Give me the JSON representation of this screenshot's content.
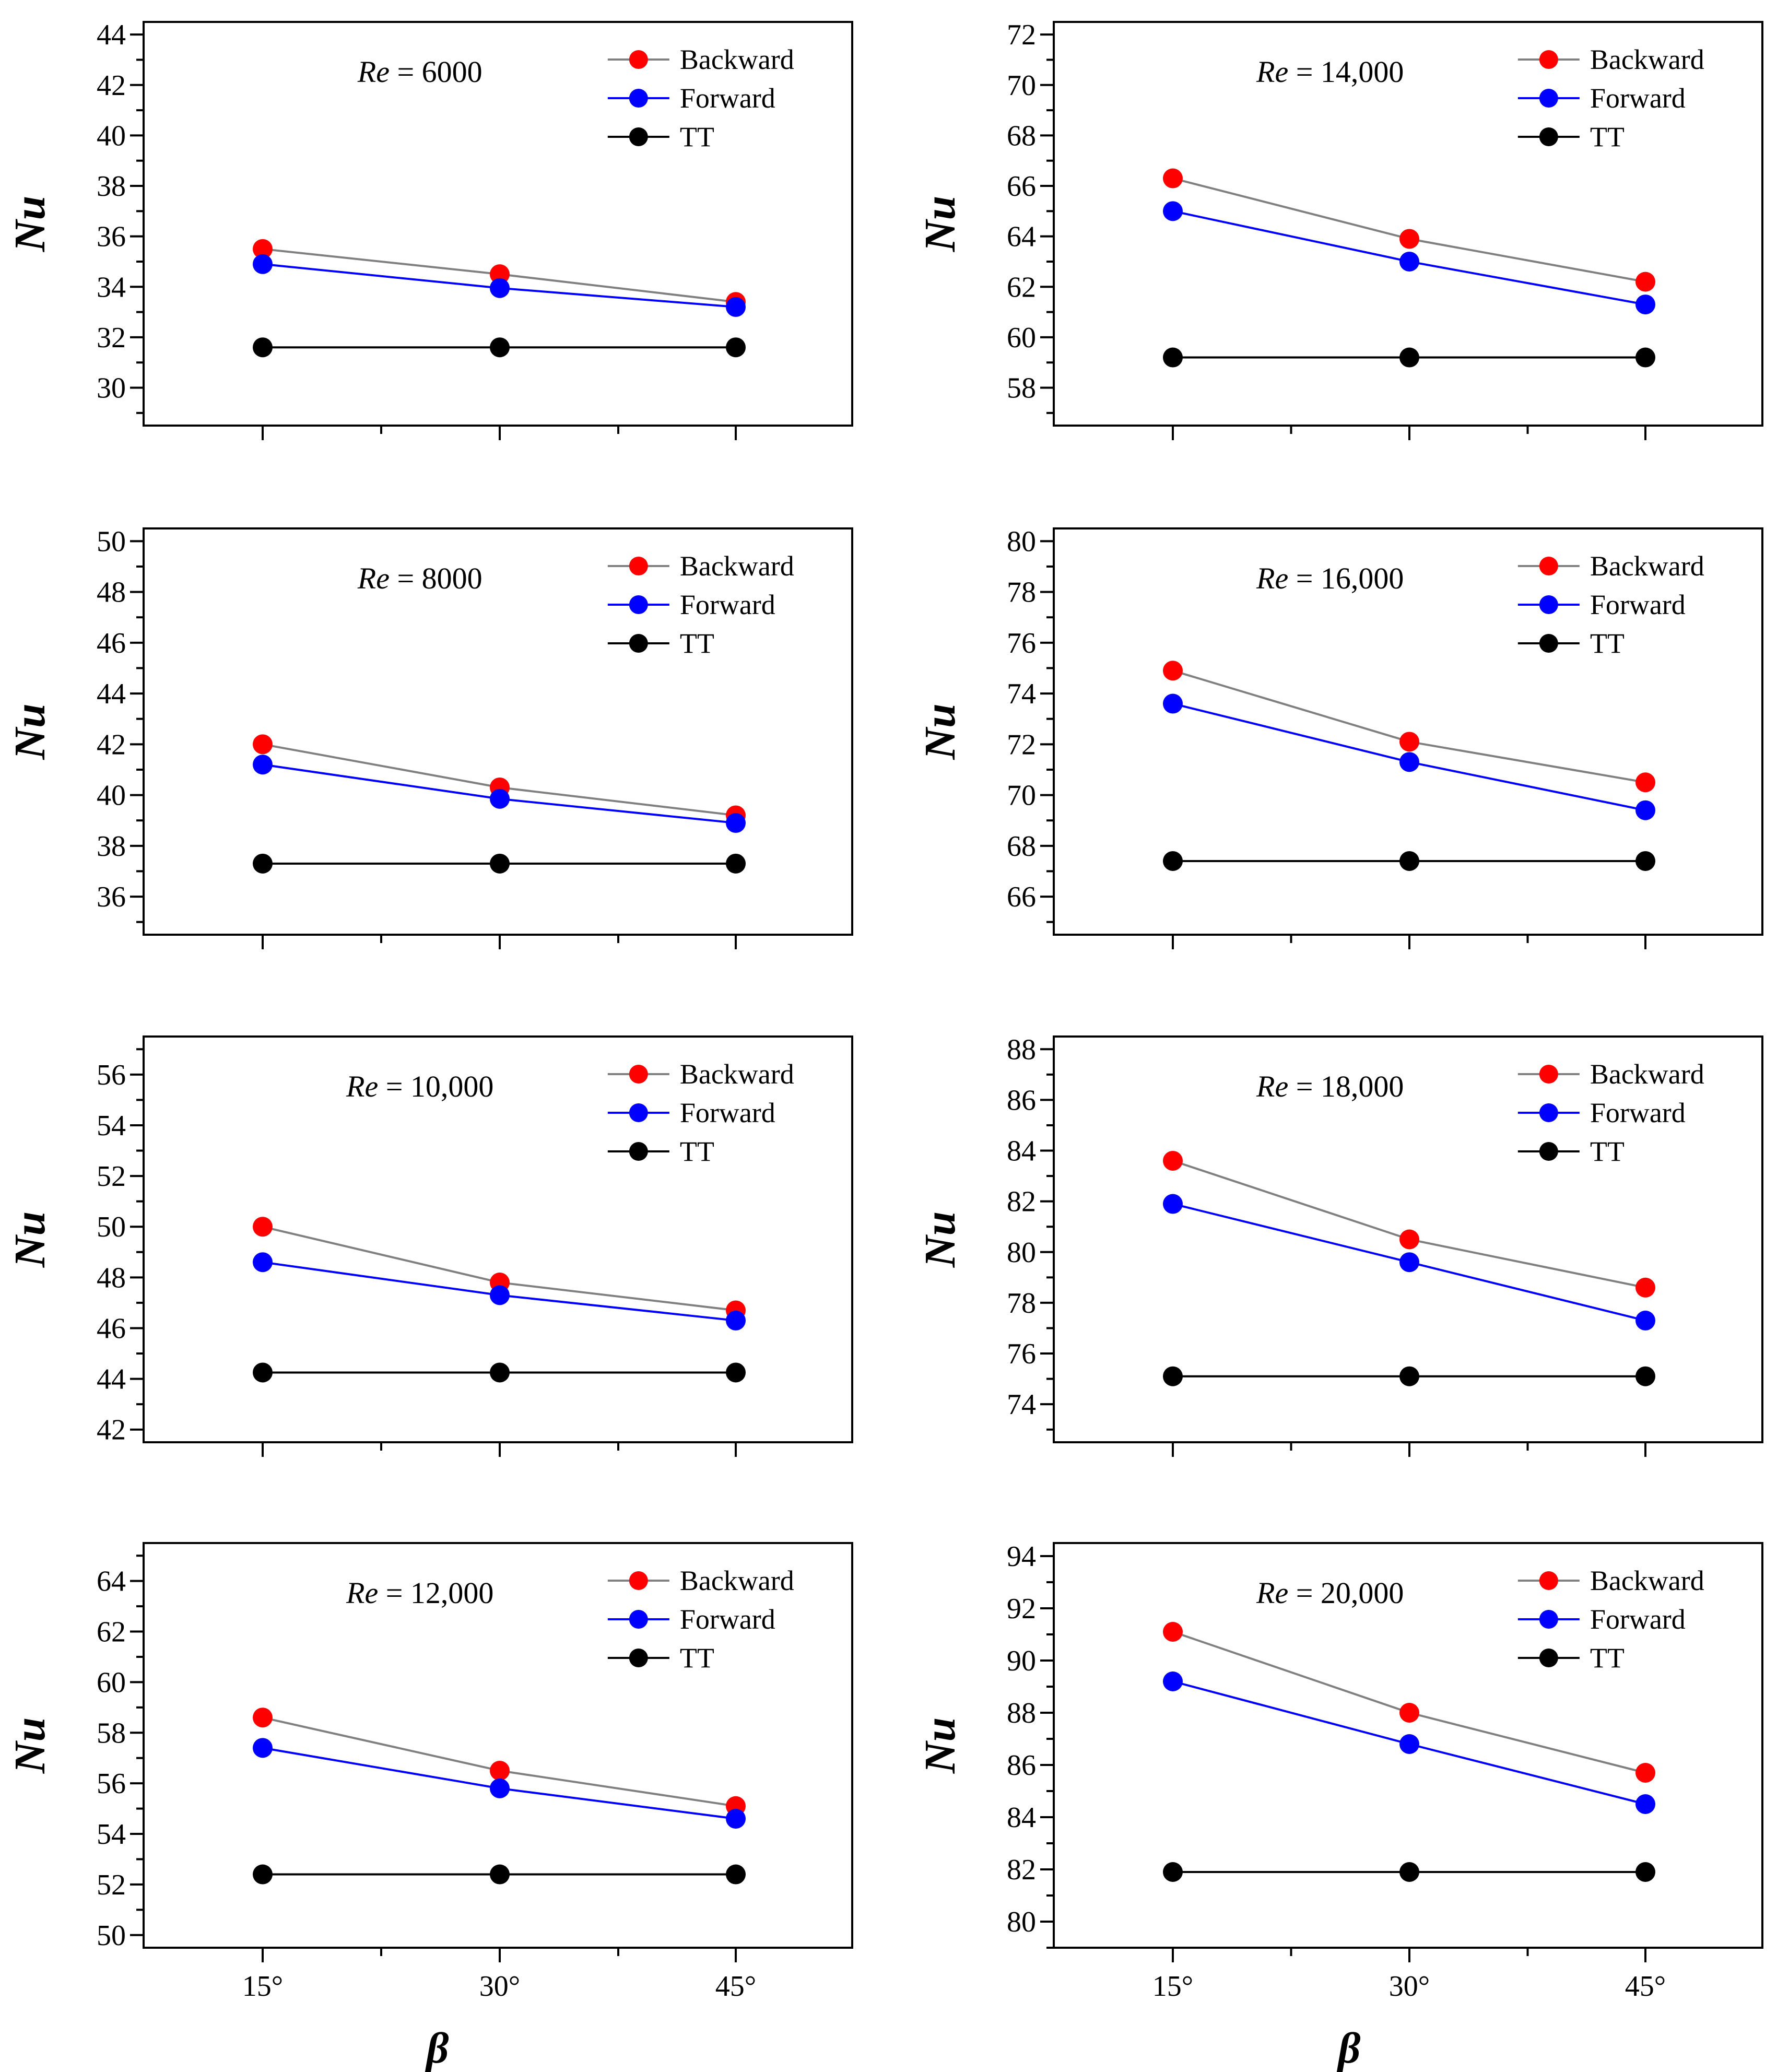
{
  "figure": {
    "ylabel": "Nu",
    "xlabel": "β",
    "x_categories": [
      "15°",
      "30°",
      "45°"
    ],
    "legend": [
      "Backward",
      "Forward",
      "TT"
    ],
    "colors": {
      "Backward_marker": "#ff0000",
      "Backward_line": "#808080",
      "Forward_marker": "#0000ff",
      "Forward_line": "#0000ff",
      "TT_marker": "#000000",
      "TT_line": "#000000"
    }
  },
  "chart_data": [
    {
      "type": "line",
      "re_prefix": "Re",
      "re_value": "= 6000",
      "categories": [
        "15°",
        "30°",
        "45°"
      ],
      "ylim": [
        28.5,
        44.5
      ],
      "yticks": [
        30,
        32,
        34,
        36,
        38,
        40,
        42,
        44
      ],
      "xlabel": "β",
      "ylabel": "Nu",
      "series": [
        {
          "name": "Backward",
          "values": [
            35.5,
            34.5,
            33.4
          ]
        },
        {
          "name": "Forward",
          "values": [
            34.9,
            33.95,
            33.2
          ]
        },
        {
          "name": "TT",
          "values": [
            31.6,
            31.6,
            31.6
          ]
        }
      ]
    },
    {
      "type": "line",
      "re_prefix": "Re",
      "re_value": "= 14,000",
      "categories": [
        "15°",
        "30°",
        "45°"
      ],
      "ylim": [
        56.5,
        72.5
      ],
      "yticks": [
        58,
        60,
        62,
        64,
        66,
        68,
        70,
        72
      ],
      "xlabel": "β",
      "ylabel": "Nu",
      "series": [
        {
          "name": "Backward",
          "values": [
            66.3,
            63.9,
            62.2
          ]
        },
        {
          "name": "Forward",
          "values": [
            65.0,
            63.0,
            61.3
          ]
        },
        {
          "name": "TT",
          "values": [
            59.2,
            59.2,
            59.2
          ]
        }
      ]
    },
    {
      "type": "line",
      "re_prefix": "Re",
      "re_value": "= 8000",
      "categories": [
        "15°",
        "30°",
        "45°"
      ],
      "ylim": [
        34.5,
        50.5
      ],
      "yticks": [
        36,
        38,
        40,
        42,
        44,
        46,
        48,
        50
      ],
      "xlabel": "β",
      "ylabel": "Nu",
      "series": [
        {
          "name": "Backward",
          "values": [
            42.0,
            40.3,
            39.2
          ]
        },
        {
          "name": "Forward",
          "values": [
            41.2,
            39.85,
            38.9
          ]
        },
        {
          "name": "TT",
          "values": [
            37.3,
            37.3,
            37.3
          ]
        }
      ]
    },
    {
      "type": "line",
      "re_prefix": "Re",
      "re_value": "= 16,000",
      "categories": [
        "15°",
        "30°",
        "45°"
      ],
      "ylim": [
        64.5,
        80.5
      ],
      "yticks": [
        66,
        68,
        70,
        72,
        74,
        76,
        78,
        80
      ],
      "xlabel": "β",
      "ylabel": "Nu",
      "series": [
        {
          "name": "Backward",
          "values": [
            74.9,
            72.1,
            70.5
          ]
        },
        {
          "name": "Forward",
          "values": [
            73.6,
            71.3,
            69.4
          ]
        },
        {
          "name": "TT",
          "values": [
            67.4,
            67.4,
            67.4
          ]
        }
      ]
    },
    {
      "type": "line",
      "re_prefix": "Re",
      "re_value": "= 10,000",
      "categories": [
        "15°",
        "30°",
        "45°"
      ],
      "ylim": [
        41.5,
        57.5
      ],
      "yticks": [
        42,
        44,
        46,
        48,
        50,
        52,
        54,
        56
      ],
      "xlabel": "β",
      "ylabel": "Nu",
      "series": [
        {
          "name": "Backward",
          "values": [
            50.0,
            47.8,
            46.7
          ]
        },
        {
          "name": "Forward",
          "values": [
            48.6,
            47.3,
            46.3
          ]
        },
        {
          "name": "TT",
          "values": [
            44.25,
            44.25,
            44.25
          ]
        }
      ]
    },
    {
      "type": "line",
      "re_prefix": "Re",
      "re_value": "= 18,000",
      "categories": [
        "15°",
        "30°",
        "45°"
      ],
      "ylim": [
        72.5,
        88.5
      ],
      "yticks": [
        74,
        76,
        78,
        80,
        82,
        84,
        86,
        88
      ],
      "xlabel": "β",
      "ylabel": "Nu",
      "series": [
        {
          "name": "Backward",
          "values": [
            83.6,
            80.5,
            78.6
          ]
        },
        {
          "name": "Forward",
          "values": [
            81.9,
            79.6,
            77.3
          ]
        },
        {
          "name": "TT",
          "values": [
            75.1,
            75.1,
            75.1
          ]
        }
      ]
    },
    {
      "type": "line",
      "re_prefix": "Re",
      "re_value": "= 12,000",
      "categories": [
        "15°",
        "30°",
        "45°"
      ],
      "ylim": [
        49.5,
        65.5
      ],
      "yticks": [
        50,
        52,
        54,
        56,
        58,
        60,
        62,
        64
      ],
      "xlabel": "β",
      "ylabel": "Nu",
      "series": [
        {
          "name": "Backward",
          "values": [
            58.6,
            56.5,
            55.1
          ]
        },
        {
          "name": "Forward",
          "values": [
            57.4,
            55.8,
            54.6
          ]
        },
        {
          "name": "TT",
          "values": [
            52.4,
            52.4,
            52.4
          ]
        }
      ]
    },
    {
      "type": "line",
      "re_prefix": "Re",
      "re_value": "= 20,000",
      "categories": [
        "15°",
        "30°",
        "45°"
      ],
      "ylim": [
        79.0,
        94.5
      ],
      "yticks": [
        80,
        82,
        84,
        86,
        88,
        90,
        92,
        94
      ],
      "xlabel": "β",
      "ylabel": "Nu",
      "series": [
        {
          "name": "Backward",
          "values": [
            91.1,
            88.0,
            85.7
          ]
        },
        {
          "name": "Forward",
          "values": [
            89.2,
            86.8,
            84.5
          ]
        },
        {
          "name": "TT",
          "values": [
            81.9,
            81.9,
            81.9
          ]
        }
      ]
    }
  ]
}
